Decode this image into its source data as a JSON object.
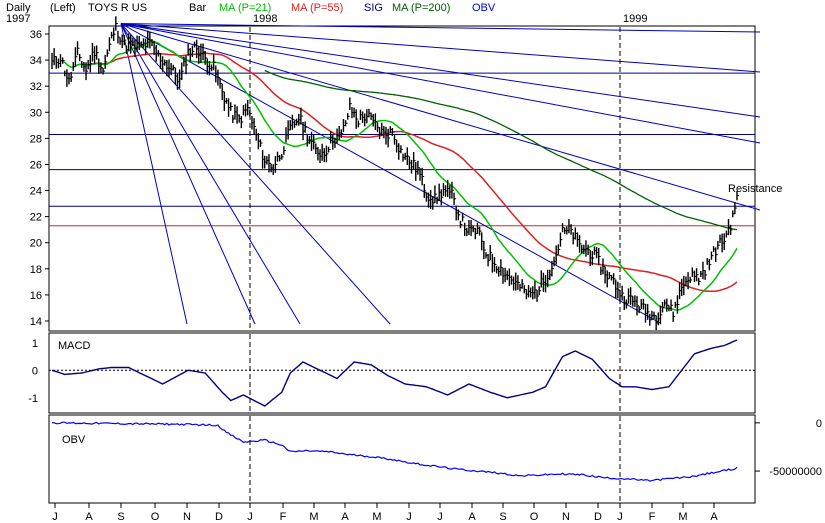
{
  "header": {
    "period": "Daily",
    "scale": "(Left)",
    "symbol": "TOYS R US",
    "start_year": "1997",
    "bar_label": "Bar",
    "ma21_label": "MA (P=21)",
    "ma55_label": "MA (P=55)",
    "sig_label": "SIG",
    "ma200_label": "MA (P=200)",
    "obv_label": "OBV"
  },
  "colors": {
    "background": "#ffffff",
    "bar": "#000000",
    "ma21": "#00c000",
    "ma55": "#e02020",
    "sig": "#000080",
    "ma200": "#006000",
    "obv": "#0000ff",
    "grid": "#000080",
    "support": "#e02020",
    "fan": "#0000c0"
  },
  "chart_data": [
    {
      "type": "bar",
      "title": "TOYS R US",
      "subtitle": "Daily",
      "ylim": [
        14,
        37
      ],
      "y_ticks": [
        14,
        16,
        18,
        20,
        22,
        24,
        26,
        28,
        30,
        32,
        34,
        36
      ],
      "x_months": [
        "J",
        "A",
        "S",
        "O",
        "N",
        "D",
        "J",
        "F",
        "M",
        "A",
        "M",
        "J",
        "J",
        "A",
        "S",
        "O",
        "N",
        "D",
        "J",
        "F",
        "M",
        "A"
      ],
      "year_labels": [
        "1998",
        "1999"
      ],
      "horizontal_levels": [
        33.0,
        28.3,
        25.6,
        22.8
      ],
      "support_level": 21.3,
      "annotation": "Resistance",
      "price_anchors": [
        [
          0,
          33.8
        ],
        [
          4,
          34.2
        ],
        [
          8,
          32.3
        ],
        [
          12,
          34.5
        ],
        [
          16,
          33.2
        ],
        [
          20,
          34.7
        ],
        [
          24,
          33.2
        ],
        [
          28,
          35.7
        ],
        [
          30,
          36.5
        ],
        [
          34,
          35.2
        ],
        [
          40,
          35.0
        ],
        [
          46,
          35.3
        ],
        [
          50,
          34.3
        ],
        [
          56,
          33.3
        ],
        [
          60,
          32.4
        ],
        [
          64,
          34.6
        ],
        [
          68,
          35.0
        ],
        [
          72,
          34.1
        ],
        [
          76,
          33.4
        ],
        [
          80,
          31.6
        ],
        [
          84,
          30.0
        ],
        [
          88,
          29.4
        ],
        [
          92,
          30.3
        ],
        [
          96,
          28.2
        ],
        [
          100,
          26.3
        ],
        [
          104,
          25.8
        ],
        [
          108,
          27.0
        ],
        [
          112,
          28.7
        ],
        [
          116,
          29.6
        ],
        [
          120,
          28.3
        ],
        [
          124,
          27.0
        ],
        [
          128,
          26.9
        ],
        [
          132,
          28.0
        ],
        [
          136,
          28.2
        ],
        [
          140,
          30.3
        ],
        [
          144,
          29.4
        ],
        [
          148,
          29.8
        ],
        [
          152,
          29.0
        ],
        [
          156,
          28.3
        ],
        [
          160,
          28.5
        ],
        [
          164,
          27.0
        ],
        [
          168,
          26.2
        ],
        [
          172,
          25.6
        ],
        [
          176,
          23.8
        ],
        [
          180,
          23.3
        ],
        [
          184,
          24.0
        ],
        [
          188,
          23.6
        ],
        [
          192,
          21.8
        ],
        [
          196,
          20.8
        ],
        [
          200,
          20.9
        ],
        [
          204,
          19.2
        ],
        [
          208,
          18.5
        ],
        [
          212,
          17.8
        ],
        [
          216,
          17.2
        ],
        [
          220,
          16.6
        ],
        [
          224,
          16.0
        ],
        [
          228,
          16.3
        ],
        [
          232,
          17.3
        ],
        [
          236,
          18.6
        ],
        [
          240,
          20.8
        ],
        [
          244,
          20.9
        ],
        [
          248,
          19.7
        ],
        [
          252,
          19.4
        ],
        [
          256,
          18.8
        ],
        [
          260,
          17.7
        ],
        [
          264,
          17.0
        ],
        [
          268,
          15.9
        ],
        [
          272,
          15.6
        ],
        [
          276,
          15.2
        ],
        [
          280,
          14.6
        ],
        [
          284,
          14.3
        ],
        [
          288,
          15.5
        ],
        [
          292,
          14.6
        ],
        [
          296,
          16.6
        ],
        [
          300,
          17.5
        ],
        [
          304,
          17.3
        ],
        [
          308,
          18.2
        ],
        [
          312,
          19.5
        ],
        [
          316,
          20.3
        ],
        [
          320,
          21.8
        ],
        [
          322,
          23.8
        ]
      ],
      "series": [
        {
          "name": "MA (P=21)",
          "values": []
        },
        {
          "name": "MA (P=55)",
          "values": []
        },
        {
          "name": "MA (P=200)",
          "values": []
        }
      ]
    },
    {
      "type": "line",
      "title": "MACD",
      "ylim": [
        -1.3,
        1.1
      ],
      "y_ticks": [
        1,
        0,
        -1
      ],
      "macd_anchors": [
        [
          0,
          0.0
        ],
        [
          6,
          -0.15
        ],
        [
          14,
          -0.1
        ],
        [
          22,
          0.05
        ],
        [
          28,
          0.1
        ],
        [
          36,
          0.1
        ],
        [
          44,
          -0.2
        ],
        [
          52,
          -0.5
        ],
        [
          58,
          -0.25
        ],
        [
          64,
          0.0
        ],
        [
          72,
          -0.1
        ],
        [
          80,
          -0.8
        ],
        [
          84,
          -1.1
        ],
        [
          90,
          -0.9
        ],
        [
          100,
          -1.3
        ],
        [
          108,
          -0.8
        ],
        [
          112,
          -0.1
        ],
        [
          118,
          0.3
        ],
        [
          126,
          0.0
        ],
        [
          134,
          -0.3
        ],
        [
          142,
          0.3
        ],
        [
          150,
          0.2
        ],
        [
          158,
          -0.2
        ],
        [
          166,
          -0.5
        ],
        [
          176,
          -0.6
        ],
        [
          186,
          -0.9
        ],
        [
          196,
          -0.5
        ],
        [
          206,
          -0.8
        ],
        [
          214,
          -1.0
        ],
        [
          220,
          -0.9
        ],
        [
          226,
          -0.8
        ],
        [
          232,
          -0.6
        ],
        [
          240,
          0.5
        ],
        [
          246,
          0.7
        ],
        [
          254,
          0.4
        ],
        [
          262,
          -0.3
        ],
        [
          268,
          -0.6
        ],
        [
          274,
          -0.6
        ],
        [
          282,
          -0.7
        ],
        [
          290,
          -0.6
        ],
        [
          296,
          0.0
        ],
        [
          302,
          0.6
        ],
        [
          310,
          0.8
        ],
        [
          316,
          0.9
        ],
        [
          322,
          1.1
        ]
      ]
    },
    {
      "type": "line",
      "title": "OBV",
      "ylim": [
        -80000000,
        5000000
      ],
      "y_ticks": [
        0,
        -50000000
      ],
      "y_tick_labels": [
        "0",
        "-50000000"
      ],
      "obv_anchors": [
        [
          0,
          0
        ],
        [
          20,
          -500000
        ],
        [
          40,
          -1000000
        ],
        [
          60,
          -1500000
        ],
        [
          78,
          -2500000
        ],
        [
          82,
          -10000000
        ],
        [
          90,
          -20000000
        ],
        [
          100,
          -18000000
        ],
        [
          108,
          -23000000
        ],
        [
          112,
          -30000000
        ],
        [
          120,
          -29000000
        ],
        [
          130,
          -30000000
        ],
        [
          140,
          -33000000
        ],
        [
          150,
          -35000000
        ],
        [
          160,
          -38000000
        ],
        [
          170,
          -42000000
        ],
        [
          180,
          -45000000
        ],
        [
          190,
          -48000000
        ],
        [
          200,
          -50000000
        ],
        [
          210,
          -52000000
        ],
        [
          220,
          -55000000
        ],
        [
          230,
          -54000000
        ],
        [
          240,
          -53000000
        ],
        [
          250,
          -54000000
        ],
        [
          260,
          -57000000
        ],
        [
          270,
          -58000000
        ],
        [
          280,
          -60000000
        ],
        [
          290,
          -58000000
        ],
        [
          300,
          -56000000
        ],
        [
          310,
          -52000000
        ],
        [
          322,
          -47000000
        ]
      ]
    }
  ]
}
